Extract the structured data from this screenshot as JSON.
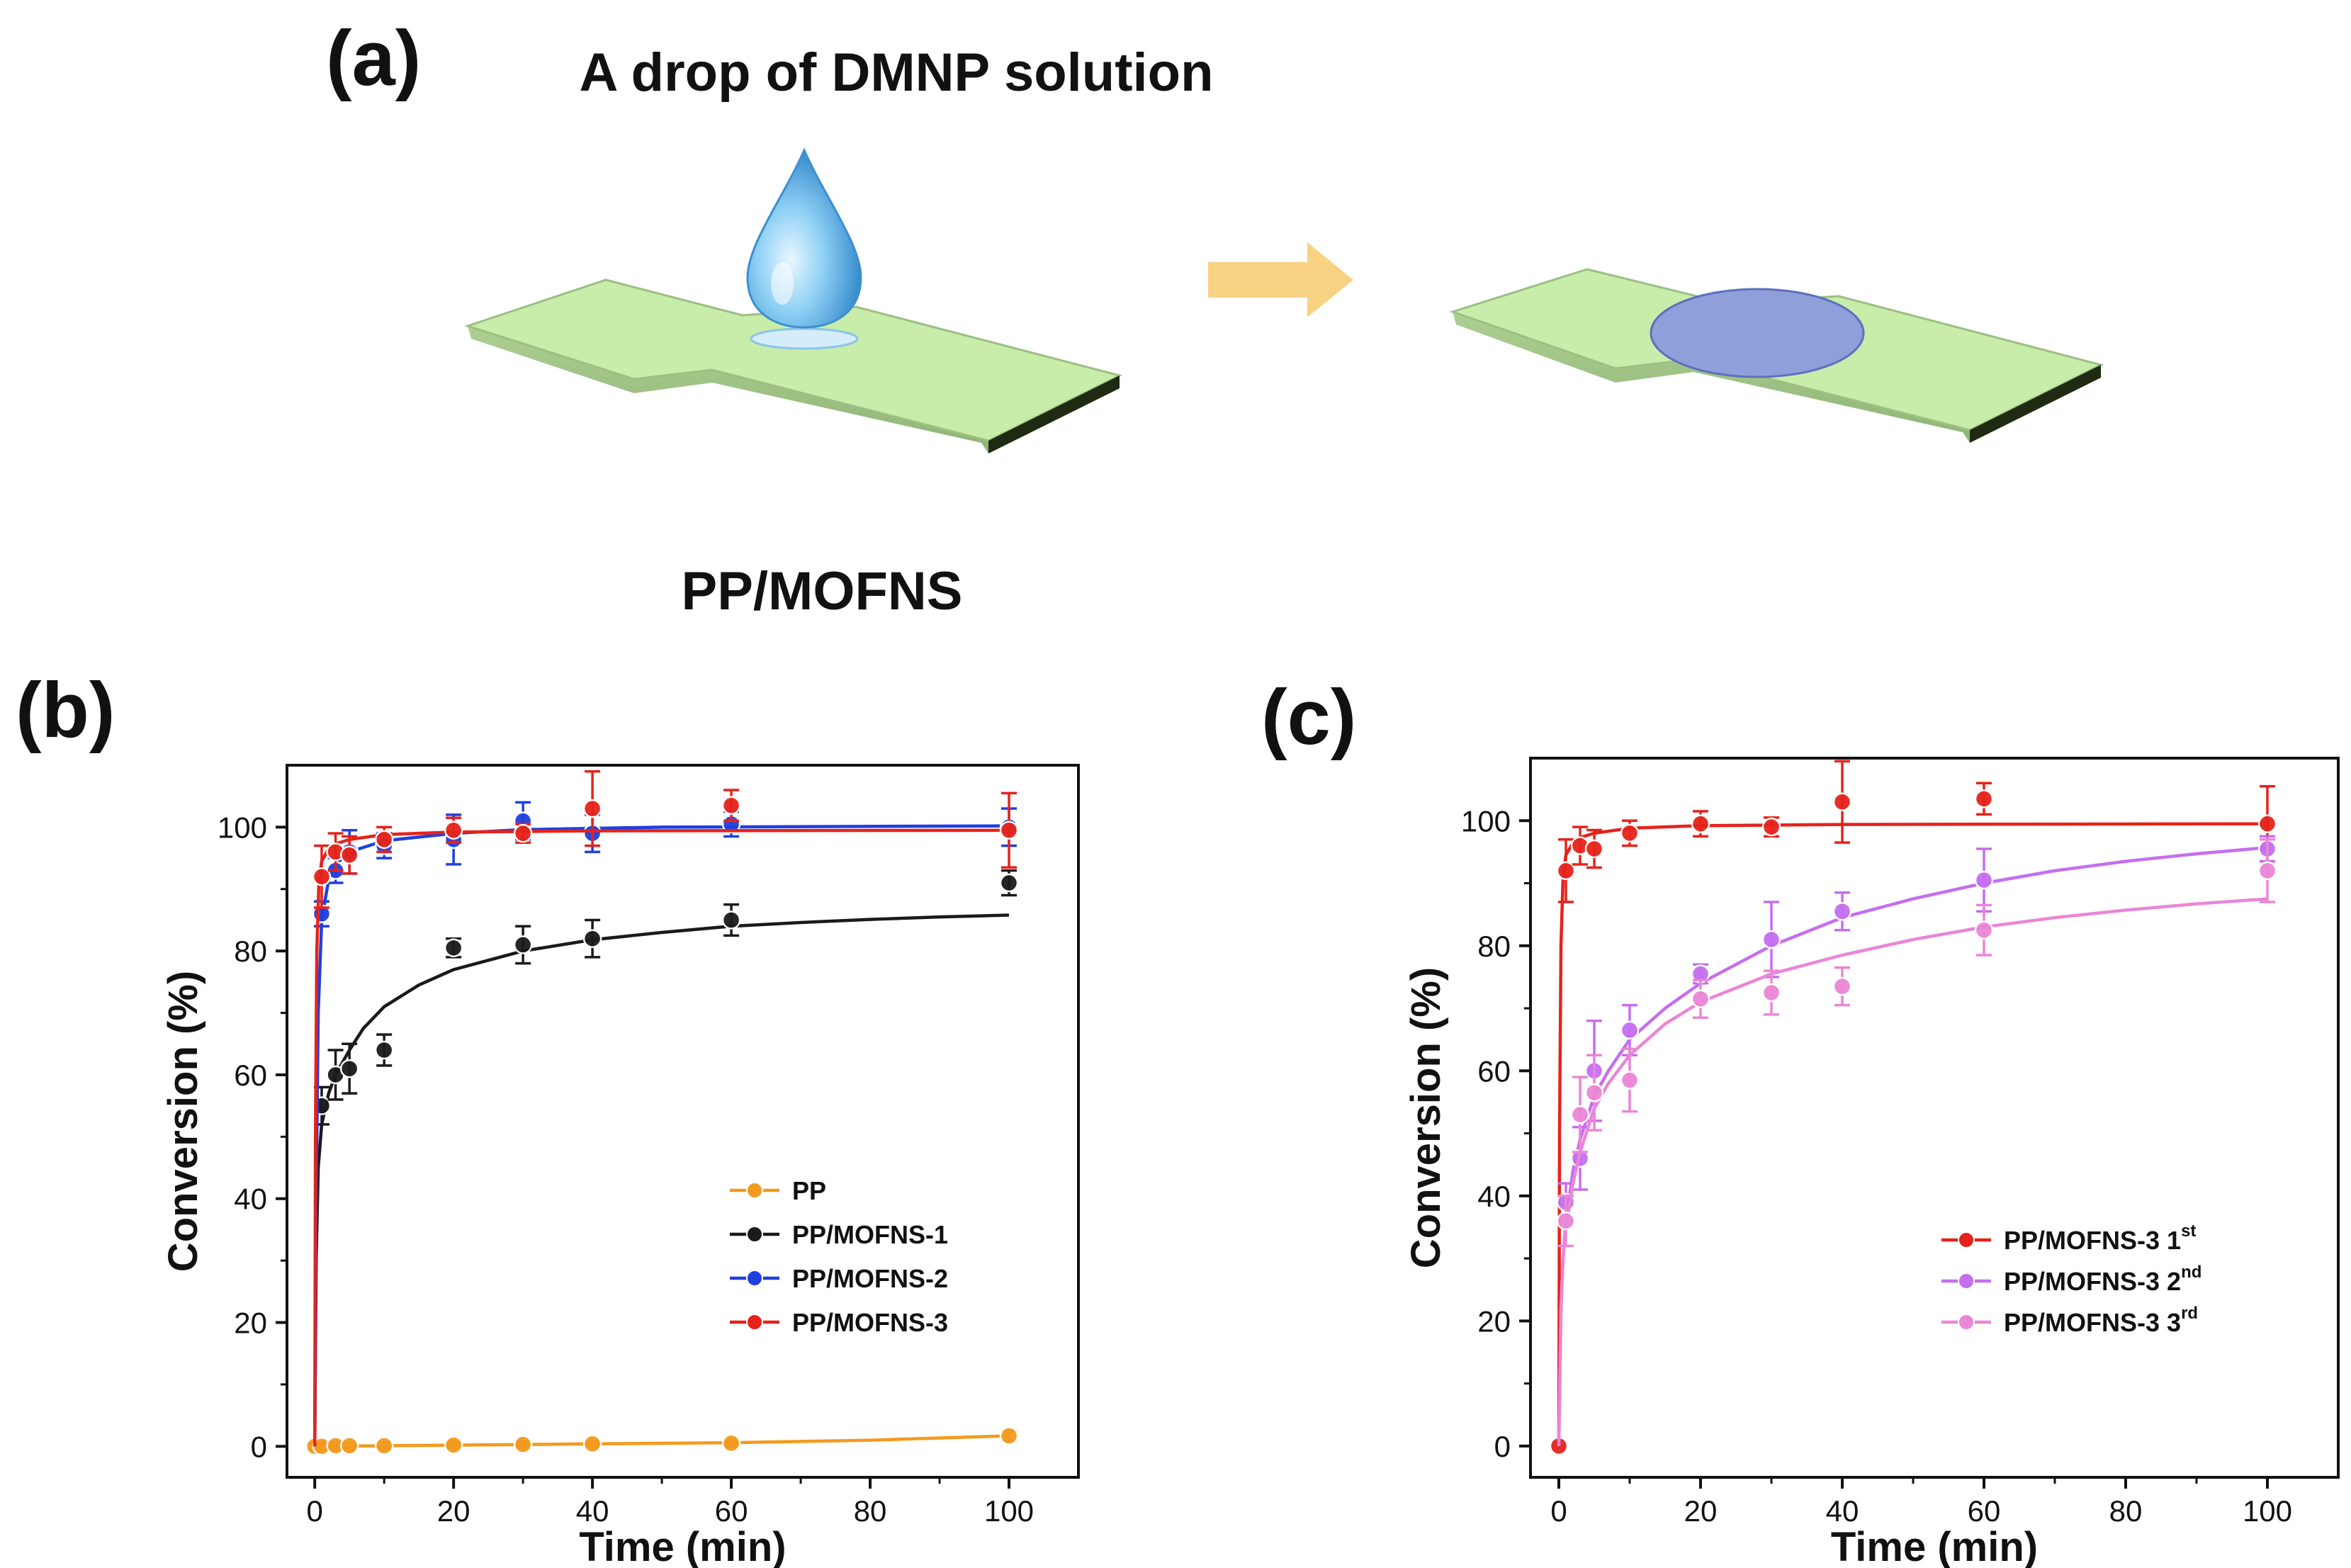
{
  "figure": {
    "panel_a_label": "(a)",
    "panel_b_label": "(b)",
    "panel_c_label": "(c)",
    "drop_caption": "A drop of DMNP solution",
    "membrane_caption": "PP/MOFNS",
    "colors": {
      "membrane": "#c8ecaa",
      "arrow": "#f7d283",
      "spot": "#8f9fd9",
      "drop": "#4aa6de"
    }
  },
  "chart_data": [
    {
      "type": "line",
      "title": "",
      "xlabel": "Time (min)",
      "ylabel": "Conversion (%)",
      "xlim": [
        -4,
        110
      ],
      "ylim": [
        -5,
        110
      ],
      "xticks": [
        0,
        20,
        40,
        60,
        80,
        100
      ],
      "yticks": [
        0,
        20,
        40,
        60,
        80,
        100
      ],
      "legend_position": "bottom-right",
      "series": [
        {
          "name": "PP",
          "color": "#f39a1e",
          "x": [
            0,
            1,
            3,
            5,
            10,
            20,
            30,
            40,
            60,
            100
          ],
          "y": [
            0,
            0,
            0.1,
            0.1,
            0.1,
            0.2,
            0.3,
            0.4,
            0.5,
            1.7
          ],
          "err": [
            0.5,
            0.5,
            0.5,
            0.5,
            0.5,
            0.5,
            0.5,
            0.5,
            0.5,
            0.8
          ],
          "fit_x": [
            0,
            20,
            40,
            60,
            80,
            100
          ],
          "fit_y": [
            0,
            0.2,
            0.4,
            0.6,
            1.0,
            1.7
          ]
        },
        {
          "name": "PP/MOFNS-1",
          "color": "#1a1a1a",
          "x": [
            1,
            3,
            5,
            10,
            20,
            30,
            40,
            60,
            100
          ],
          "y": [
            55,
            60,
            61,
            64,
            80.5,
            81,
            82,
            85,
            91
          ],
          "err": [
            3,
            4,
            4,
            2.5,
            1.5,
            3,
            3,
            2.5,
            2
          ],
          "fit_x": [
            0,
            0.2,
            0.5,
            1,
            2,
            3,
            5,
            7,
            10,
            15,
            20,
            30,
            40,
            50,
            60,
            70,
            80,
            90,
            100
          ],
          "fit_y": [
            0,
            30,
            45,
            52,
            57,
            60,
            64,
            67.5,
            71,
            74.5,
            77,
            80,
            81.8,
            83,
            84,
            84.6,
            85.1,
            85.5,
            85.8
          ]
        },
        {
          "name": "PP/MOFNS-2",
          "color": "#1f3fe0",
          "x": [
            1,
            3,
            5,
            10,
            20,
            30,
            40,
            60,
            100
          ],
          "y": [
            86,
            93,
            96,
            97,
            98,
            101,
            99,
            100.5,
            100
          ],
          "err": [
            2,
            2,
            3.5,
            2,
            4,
            3,
            3,
            2,
            3
          ],
          "fit_x": [
            0,
            0.2,
            0.5,
            1,
            2,
            3,
            5,
            10,
            20,
            30,
            50,
            100
          ],
          "fit_y": [
            0,
            40,
            70,
            85,
            91.5,
            94,
            96,
            97.8,
            99,
            99.6,
            100,
            100.2
          ]
        },
        {
          "name": "PP/MOFNS-3",
          "color": "#e5231b",
          "x": [
            1,
            3,
            5,
            10,
            20,
            30,
            40,
            60,
            100
          ],
          "y": [
            92,
            96,
            95.5,
            98,
            99.5,
            99,
            103,
            103.5,
            99.5
          ],
          "err": [
            5,
            3,
            3,
            2,
            2,
            1.5,
            6,
            2.5,
            6
          ],
          "fit_x": [
            0,
            0.1,
            0.3,
            0.6,
            1,
            2,
            3,
            5,
            10,
            20,
            40,
            100
          ],
          "fit_y": [
            0,
            50,
            80,
            91,
            94.5,
            96.5,
            97.3,
            98,
            98.8,
            99.2,
            99.4,
            99.5
          ]
        }
      ]
    },
    {
      "type": "line",
      "title": "",
      "xlabel": "Time (min)",
      "ylabel": "Conversion (%)",
      "xlim": [
        -4,
        110
      ],
      "ylim": [
        -5,
        110
      ],
      "xticks": [
        0,
        20,
        40,
        60,
        80,
        100
      ],
      "yticks": [
        0,
        20,
        40,
        60,
        80,
        100
      ],
      "legend_position": "bottom-right",
      "series": [
        {
          "name": "PP/MOFNS-3 1",
          "sup": "st",
          "color": "#e5231b",
          "x": [
            0,
            1,
            3,
            5,
            10,
            20,
            30,
            40,
            60,
            100
          ],
          "y": [
            0,
            92,
            96,
            95.5,
            98,
            99.5,
            99,
            103,
            103.5,
            99.5
          ],
          "err": [
            0,
            5,
            3,
            3,
            2,
            2,
            1.5,
            6.5,
            2.5,
            6
          ],
          "fit_x": [
            0,
            0.1,
            0.3,
            0.6,
            1,
            2,
            3,
            5,
            10,
            20,
            40,
            100
          ],
          "fit_y": [
            0,
            50,
            80,
            91,
            94.5,
            96.5,
            97.3,
            98,
            98.8,
            99.2,
            99.4,
            99.5
          ]
        },
        {
          "name": "PP/MOFNS-3 2",
          "sup": "nd",
          "color": "#c56ef0",
          "x": [
            1,
            3,
            5,
            10,
            20,
            30,
            40,
            60,
            100
          ],
          "y": [
            39,
            46,
            60,
            66.5,
            75.5,
            81,
            85.5,
            90.5,
            95.5
          ],
          "err": [
            3,
            5,
            8,
            4,
            1.5,
            6,
            3,
            5,
            2
          ],
          "fit_x": [
            0,
            0.3,
            0.6,
            1,
            2,
            3,
            5,
            7,
            10,
            15,
            20,
            30,
            40,
            50,
            60,
            70,
            80,
            90,
            100
          ],
          "fit_y": [
            0,
            22,
            30,
            36,
            44,
            49,
            56,
            60,
            65,
            70,
            74,
            80,
            84.5,
            87.5,
            90,
            92,
            93.5,
            94.7,
            95.7
          ]
        },
        {
          "name": "PP/MOFNS-3 3",
          "sup": "rd",
          "color": "#ea86d6",
          "x": [
            1,
            3,
            5,
            10,
            20,
            30,
            40,
            60,
            100
          ],
          "y": [
            36,
            53,
            56.5,
            58.5,
            71.5,
            72.5,
            73.5,
            82.5,
            92
          ],
          "err": [
            4,
            6,
            6,
            5,
            3,
            3.5,
            3,
            4,
            5
          ],
          "fit_x": [
            0,
            0.3,
            0.6,
            1,
            2,
            3,
            5,
            7,
            10,
            15,
            20,
            30,
            40,
            50,
            60,
            70,
            80,
            90,
            100
          ],
          "fit_y": [
            0,
            22,
            30,
            35,
            42,
            47,
            54,
            58,
            62.5,
            67.5,
            71,
            75.5,
            78.5,
            81,
            83,
            84.5,
            85.7,
            86.7,
            87.5
          ]
        }
      ]
    }
  ]
}
